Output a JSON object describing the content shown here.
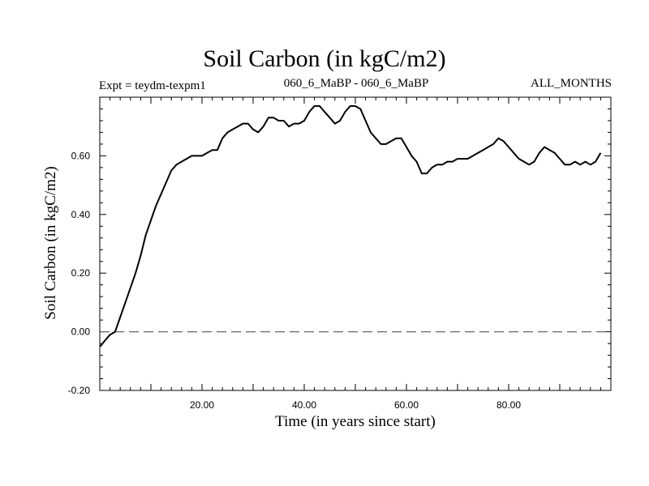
{
  "chart_data": {
    "type": "line",
    "title": "Soil Carbon (in kgC/m2)",
    "subtitle_left": "Expt = teydm-texpm1",
    "subtitle_center": "060_6_MaBP - 060_6_MaBP",
    "subtitle_right": "ALL_MONTHS",
    "xlabel": "Time (in years since start)",
    "ylabel": "Soil Carbon (in kgC/m2)",
    "xlim": [
      0,
      100
    ],
    "ylim": [
      -0.2,
      0.8
    ],
    "x_tick_labels": [
      "20.00",
      "40.00",
      "60.00",
      "80.00"
    ],
    "y_tick_labels": [
      "-0.20",
      "0.00",
      "0.20",
      "0.40",
      "0.60"
    ],
    "reference_line": {
      "y": 0.0,
      "style": "dashed"
    },
    "grid": false,
    "series": [
      {
        "x": [
          0.1,
          1,
          2,
          3,
          4,
          5,
          6,
          7,
          8,
          9,
          10,
          11,
          12,
          13,
          14,
          15,
          16,
          17,
          18,
          19,
          20,
          21,
          22,
          23,
          24,
          25,
          26,
          27,
          28,
          29,
          30,
          31,
          32,
          33,
          34,
          35,
          36,
          37,
          38,
          39,
          40,
          41,
          42,
          43,
          44,
          45,
          46,
          47,
          48,
          49,
          50,
          51,
          52,
          53,
          54,
          55,
          56,
          57,
          58,
          59,
          60,
          61,
          62,
          63,
          64,
          65,
          66,
          67,
          68,
          69,
          70,
          71,
          72,
          73,
          74,
          75,
          76,
          77,
          78,
          79,
          80,
          81,
          82,
          83,
          84,
          85,
          86,
          87,
          88,
          89,
          90,
          91,
          92,
          93,
          94,
          95,
          96,
          97,
          98
        ],
        "values": [
          -0.05,
          -0.03,
          -0.01,
          0.0,
          0.05,
          0.1,
          0.15,
          0.2,
          0.26,
          0.33,
          0.38,
          0.43,
          0.47,
          0.51,
          0.55,
          0.57,
          0.58,
          0.59,
          0.6,
          0.6,
          0.6,
          0.61,
          0.62,
          0.62,
          0.66,
          0.68,
          0.69,
          0.7,
          0.71,
          0.71,
          0.69,
          0.68,
          0.7,
          0.73,
          0.73,
          0.72,
          0.72,
          0.7,
          0.71,
          0.71,
          0.72,
          0.75,
          0.77,
          0.77,
          0.75,
          0.73,
          0.71,
          0.72,
          0.75,
          0.77,
          0.77,
          0.76,
          0.72,
          0.68,
          0.66,
          0.64,
          0.64,
          0.65,
          0.66,
          0.66,
          0.63,
          0.6,
          0.58,
          0.54,
          0.54,
          0.56,
          0.57,
          0.57,
          0.58,
          0.58,
          0.59,
          0.59,
          0.59,
          0.6,
          0.61,
          0.62,
          0.63,
          0.64,
          0.66,
          0.65,
          0.63,
          0.61,
          0.59,
          0.58,
          0.57,
          0.58,
          0.61,
          0.63,
          0.62,
          0.61,
          0.59,
          0.57,
          0.57,
          0.58,
          0.57,
          0.58,
          0.57,
          0.58,
          0.61
        ]
      }
    ]
  }
}
